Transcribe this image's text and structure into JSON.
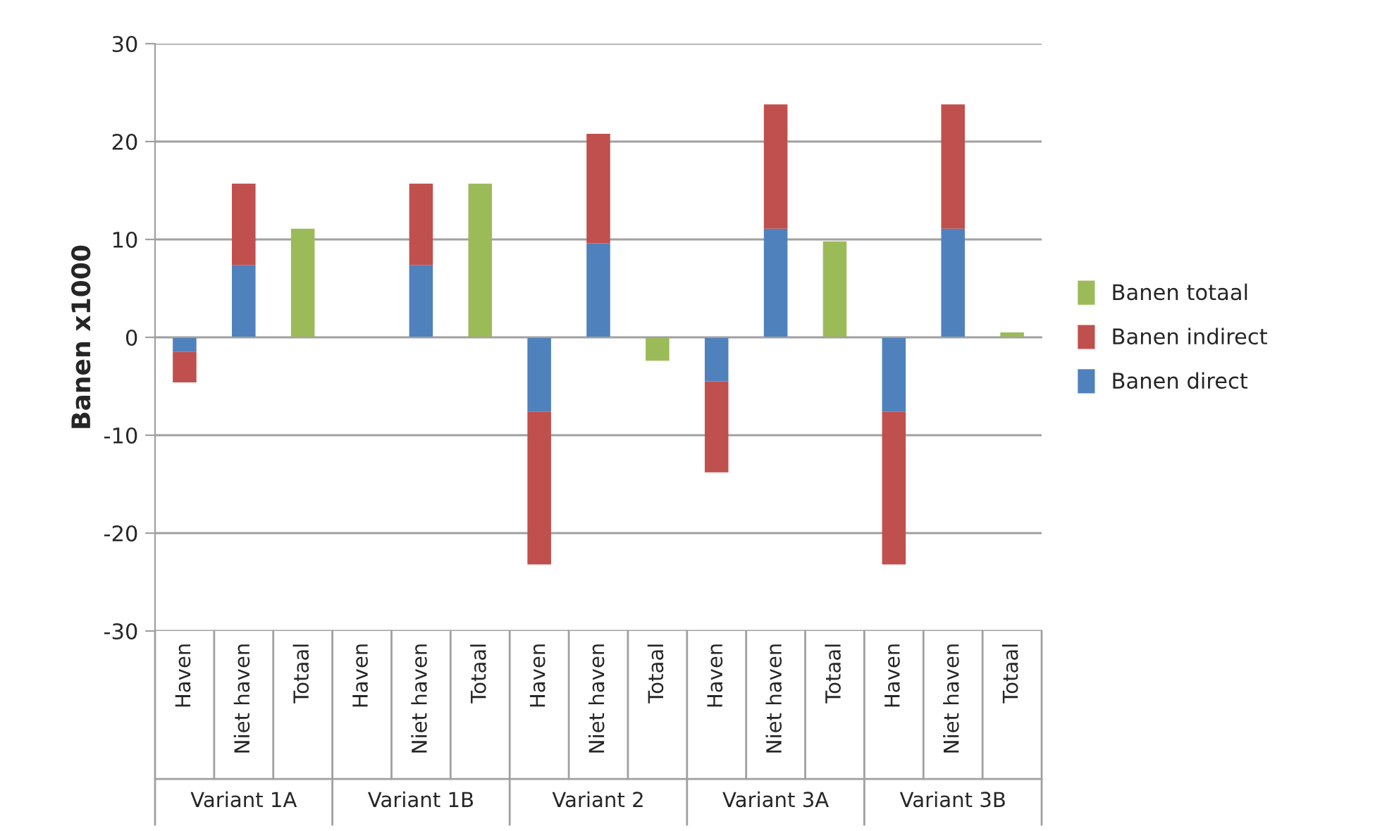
{
  "chart_data": {
    "type": "bar",
    "stacked": true,
    "ylabel": "Banen x1000",
    "categories": [
      "Haven",
      "Niet haven",
      "Totaal",
      "Haven",
      "Niet haven",
      "Totaal",
      "Haven",
      "Niet haven",
      "Totaal",
      "Haven",
      "Niet haven",
      "Totaal",
      "Haven",
      "Niet haven",
      "Totaal"
    ],
    "annotations": [
      "Variant 1A",
      "Variant 1B",
      "Variant 2",
      "Variant 3A",
      "Variant 3B"
    ],
    "series": [
      {
        "name": "Banen direct",
        "color": "#4f81bd",
        "values": [
          -1.5,
          7.4,
          null,
          null,
          7.4,
          null,
          -7.6,
          9.6,
          null,
          -4.5,
          11.1,
          null,
          -7.6,
          11.1,
          null
        ]
      },
      {
        "name": "Banen indirect",
        "color": "#c0504d",
        "values": [
          -3.1,
          8.3,
          null,
          null,
          8.3,
          null,
          -15.6,
          11.2,
          null,
          -9.3,
          12.7,
          null,
          -15.6,
          12.7,
          null
        ]
      },
      {
        "name": "Banen totaal",
        "color": "#9bbb59",
        "values": [
          null,
          null,
          11.1,
          null,
          null,
          15.7,
          null,
          null,
          -2.4,
          null,
          null,
          9.8,
          null,
          null,
          0.5
        ]
      }
    ],
    "ylim": [
      -30,
      30
    ],
    "yticks": [
      -30,
      -20,
      -10,
      0,
      10,
      20,
      30
    ],
    "grid": "y",
    "legend": "right"
  }
}
